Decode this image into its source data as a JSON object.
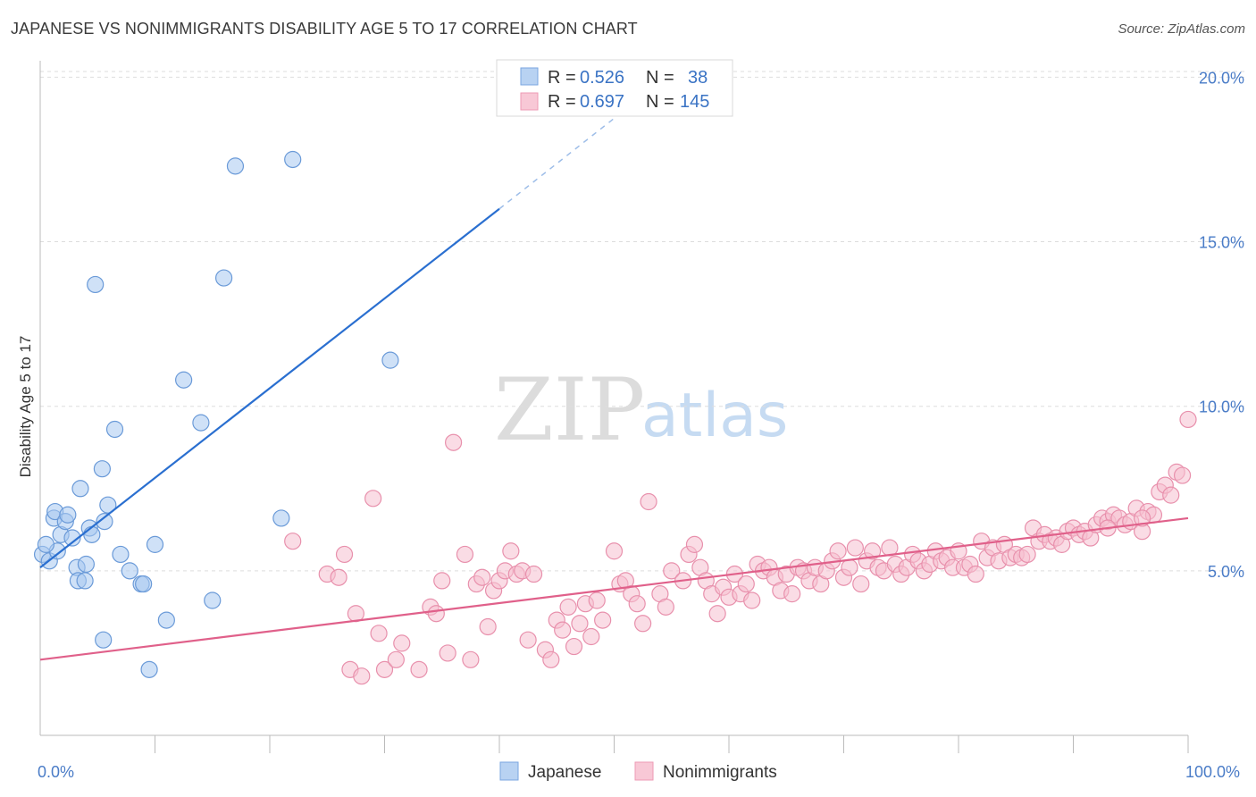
{
  "header": {
    "title": "JAPANESE VS NONIMMIGRANTS DISABILITY AGE 5 TO 17 CORRELATION CHART",
    "source": "Source: ZipAtlas.com"
  },
  "watermark": {
    "zip": "ZIP",
    "atlas": "atlas"
  },
  "legend": {
    "rows": [
      {
        "r_label": "R =",
        "r_value": "0.526",
        "n_label": "N =",
        "n_value": "38",
        "color": "#8ab4e8"
      },
      {
        "r_label": "R =",
        "r_value": "0.697",
        "n_label": "N =",
        "n_value": "145",
        "color": "#f0a0b8"
      }
    ]
  },
  "bottom_legend": [
    {
      "label": "Japanese",
      "color": "#8ab4e8"
    },
    {
      "label": "Nonimmigrants",
      "color": "#f0a0b8"
    }
  ],
  "colors": {
    "japanese_fill": "#a8c8f0",
    "japanese_stroke": "#6a9ad8",
    "japanese_line": "#2a6fd0",
    "nonimm_fill": "#f6c0d0",
    "nonimm_stroke": "#e890ac",
    "nonimm_line": "#e0608a"
  },
  "chart_data": {
    "type": "scatter",
    "title": "JAPANESE VS NONIMMIGRANTS DISABILITY AGE 5 TO 17 CORRELATION CHART",
    "xlabel": "",
    "ylabel": "Disability Age 5 to 17",
    "xlim": [
      0,
      100
    ],
    "ylim": [
      0,
      20.5
    ],
    "x_tick_labels": [
      "0.0%",
      "100.0%"
    ],
    "y_ticks": [
      5,
      10,
      15,
      20
    ],
    "y_tick_labels": [
      "5.0%",
      "10.0%",
      "15.0%",
      "20.0%"
    ],
    "grid": true,
    "series": [
      {
        "name": "Japanese",
        "R": 0.526,
        "N": 38,
        "trend": {
          "x": [
            0,
            40
          ],
          "y": [
            5.1,
            16.0
          ],
          "dashed_to": [
            52,
            19.3
          ]
        },
        "points": [
          [
            0.2,
            5.5
          ],
          [
            0.8,
            5.3
          ],
          [
            1.2,
            6.6
          ],
          [
            1.5,
            5.6
          ],
          [
            1.3,
            6.8
          ],
          [
            1.8,
            6.1
          ],
          [
            2.2,
            6.5
          ],
          [
            2.4,
            6.7
          ],
          [
            2.8,
            6.0
          ],
          [
            3.2,
            5.1
          ],
          [
            3.3,
            4.7
          ],
          [
            3.5,
            7.5
          ],
          [
            3.9,
            4.7
          ],
          [
            4.0,
            5.2
          ],
          [
            4.3,
            6.3
          ],
          [
            4.5,
            6.1
          ],
          [
            4.8,
            13.7
          ],
          [
            5.4,
            8.1
          ],
          [
            5.6,
            6.5
          ],
          [
            5.9,
            7.0
          ],
          [
            6.5,
            9.3
          ],
          [
            7.0,
            5.5
          ],
          [
            7.8,
            5.0
          ],
          [
            8.8,
            4.6
          ],
          [
            9.0,
            4.6
          ],
          [
            9.5,
            2.0
          ],
          [
            10.0,
            5.8
          ],
          [
            11.0,
            3.5
          ],
          [
            12.5,
            10.8
          ],
          [
            14.0,
            9.5
          ],
          [
            15.0,
            4.1
          ],
          [
            16.0,
            13.9
          ],
          [
            17.0,
            17.3
          ],
          [
            21.0,
            6.6
          ],
          [
            22.0,
            17.5
          ],
          [
            30.5,
            11.4
          ],
          [
            5.5,
            2.9
          ],
          [
            0.5,
            5.8
          ]
        ]
      },
      {
        "name": "Nonimmigrants",
        "R": 0.697,
        "N": 145,
        "trend": {
          "x": [
            0,
            100
          ],
          "y": [
            2.3,
            6.6
          ]
        },
        "points": [
          [
            22,
            5.9
          ],
          [
            25,
            4.9
          ],
          [
            26,
            4.8
          ],
          [
            26.5,
            5.5
          ],
          [
            27,
            2.0
          ],
          [
            27.5,
            3.7
          ],
          [
            28,
            1.8
          ],
          [
            29,
            7.2
          ],
          [
            29.5,
            3.1
          ],
          [
            30,
            2.0
          ],
          [
            31,
            2.3
          ],
          [
            31.5,
            2.8
          ],
          [
            33,
            2.0
          ],
          [
            34,
            3.9
          ],
          [
            34.5,
            3.7
          ],
          [
            35,
            4.7
          ],
          [
            35.5,
            2.5
          ],
          [
            36,
            8.9
          ],
          [
            37,
            5.5
          ],
          [
            37.5,
            2.3
          ],
          [
            38,
            4.6
          ],
          [
            38.5,
            4.8
          ],
          [
            39,
            3.3
          ],
          [
            39.5,
            4.4
          ],
          [
            40,
            4.7
          ],
          [
            40.5,
            5.0
          ],
          [
            41,
            5.6
          ],
          [
            41.5,
            4.9
          ],
          [
            42,
            5.0
          ],
          [
            42.5,
            2.9
          ],
          [
            43,
            4.9
          ],
          [
            44,
            2.6
          ],
          [
            44.5,
            2.3
          ],
          [
            45,
            3.5
          ],
          [
            45.5,
            3.2
          ],
          [
            46,
            3.9
          ],
          [
            46.5,
            2.7
          ],
          [
            47,
            3.4
          ],
          [
            47.5,
            4.0
          ],
          [
            48,
            3.0
          ],
          [
            48.5,
            4.1
          ],
          [
            49,
            3.5
          ],
          [
            50,
            5.6
          ],
          [
            50.5,
            4.6
          ],
          [
            51,
            4.7
          ],
          [
            51.5,
            4.3
          ],
          [
            52,
            4.0
          ],
          [
            52.5,
            3.4
          ],
          [
            53,
            7.1
          ],
          [
            54,
            4.3
          ],
          [
            54.5,
            3.9
          ],
          [
            55,
            5.0
          ],
          [
            56,
            4.7
          ],
          [
            56.5,
            5.5
          ],
          [
            57,
            5.8
          ],
          [
            57.5,
            5.1
          ],
          [
            58,
            4.7
          ],
          [
            58.5,
            4.3
          ],
          [
            59,
            3.7
          ],
          [
            59.5,
            4.5
          ],
          [
            60,
            4.2
          ],
          [
            60.5,
            4.9
          ],
          [
            61,
            4.3
          ],
          [
            61.5,
            4.6
          ],
          [
            62,
            4.1
          ],
          [
            62.5,
            5.2
          ],
          [
            63,
            5.0
          ],
          [
            63.5,
            5.1
          ],
          [
            64,
            4.8
          ],
          [
            64.5,
            4.4
          ],
          [
            65,
            4.9
          ],
          [
            65.5,
            4.3
          ],
          [
            66,
            5.1
          ],
          [
            66.5,
            5.0
          ],
          [
            67,
            4.7
          ],
          [
            67.5,
            5.1
          ],
          [
            68,
            4.6
          ],
          [
            68.5,
            5.0
          ],
          [
            69,
            5.3
          ],
          [
            69.5,
            5.6
          ],
          [
            70,
            4.8
          ],
          [
            70.5,
            5.1
          ],
          [
            71,
            5.7
          ],
          [
            71.5,
            4.6
          ],
          [
            72,
            5.3
          ],
          [
            72.5,
            5.6
          ],
          [
            73,
            5.1
          ],
          [
            73.5,
            5.0
          ],
          [
            74,
            5.7
          ],
          [
            74.5,
            5.2
          ],
          [
            75,
            4.9
          ],
          [
            75.5,
            5.1
          ],
          [
            76,
            5.5
          ],
          [
            76.5,
            5.3
          ],
          [
            77,
            5.0
          ],
          [
            77.5,
            5.2
          ],
          [
            78,
            5.6
          ],
          [
            78.5,
            5.3
          ],
          [
            79,
            5.4
          ],
          [
            79.5,
            5.1
          ],
          [
            80,
            5.6
          ],
          [
            80.5,
            5.1
          ],
          [
            81,
            5.2
          ],
          [
            81.5,
            4.9
          ],
          [
            82,
            5.9
          ],
          [
            82.5,
            5.4
          ],
          [
            83,
            5.7
          ],
          [
            83.5,
            5.3
          ],
          [
            84,
            5.8
          ],
          [
            84.5,
            5.4
          ],
          [
            85,
            5.5
          ],
          [
            85.5,
            5.4
          ],
          [
            86,
            5.5
          ],
          [
            86.5,
            6.3
          ],
          [
            87,
            5.9
          ],
          [
            87.5,
            6.1
          ],
          [
            88,
            5.9
          ],
          [
            88.5,
            6.0
          ],
          [
            89,
            5.8
          ],
          [
            89.5,
            6.2
          ],
          [
            90,
            6.3
          ],
          [
            90.5,
            6.1
          ],
          [
            91,
            6.2
          ],
          [
            91.5,
            6.0
          ],
          [
            92,
            6.4
          ],
          [
            92.5,
            6.6
          ],
          [
            93,
            6.5
          ],
          [
            93.5,
            6.7
          ],
          [
            94,
            6.6
          ],
          [
            94.5,
            6.4
          ],
          [
            95,
            6.5
          ],
          [
            95.5,
            6.9
          ],
          [
            96,
            6.2
          ],
          [
            96.5,
            6.8
          ],
          [
            97,
            6.7
          ],
          [
            97.5,
            7.4
          ],
          [
            98,
            7.6
          ],
          [
            98.5,
            7.3
          ],
          [
            99,
            8.0
          ],
          [
            99.5,
            7.9
          ],
          [
            100,
            9.6
          ],
          [
            96,
            6.6
          ],
          [
            93,
            6.3
          ]
        ]
      }
    ]
  }
}
